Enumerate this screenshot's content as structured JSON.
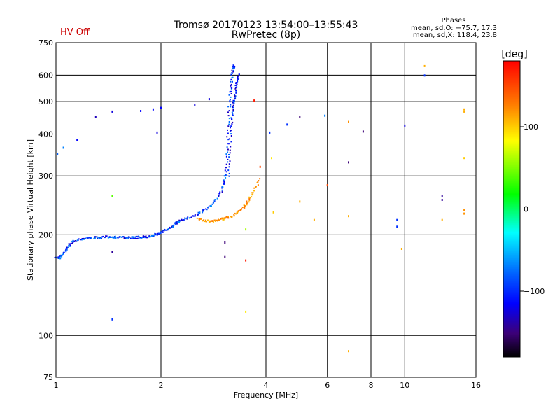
{
  "header": {
    "title": "Tromsø 20170123 13:54:00–13:55:43",
    "subtitle": "RwPretec (8p)",
    "status": "HV Off",
    "status_color": "#cc0000"
  },
  "stats": {
    "heading": "Phases",
    "line_o": "mean, sd,O: −75.7, 17.3",
    "line_x": "mean, sd,X: 118.4, 23.8"
  },
  "chart_data": {
    "type": "scatter",
    "xlabel": "Frequency [MHz]",
    "ylabel": "Stationary phase Virtual Height [km]",
    "xscale": "log",
    "yscale": "log",
    "xlim": [
      1,
      16
    ],
    "ylim": [
      75,
      750
    ],
    "xticks": [
      1,
      2,
      4,
      6,
      8,
      10,
      16
    ],
    "xtick_labels": [
      "1",
      "2",
      "4",
      "6",
      "8",
      "10",
      "16"
    ],
    "xgrid": [
      2,
      4,
      6,
      8,
      10
    ],
    "yticks": [
      75,
      100,
      200,
      300,
      400,
      500,
      600,
      750
    ],
    "ytick_labels": [
      "75",
      "100",
      "200",
      "300",
      "400",
      "500",
      "600",
      "750"
    ],
    "ygrid": [
      100,
      200,
      300,
      400,
      500,
      600
    ],
    "grid": true,
    "colorbar": {
      "label": "[deg]",
      "min": -180,
      "max": 180,
      "ticks": [
        100,
        0,
        -100
      ],
      "tick_labels": [
        "100",
        "0",
        "−100"
      ]
    },
    "o_trace": {
      "phase": -90,
      "points": [
        [
          1.0,
          172
        ],
        [
          1.02,
          170
        ],
        [
          1.04,
          173
        ],
        [
          1.06,
          178
        ],
        [
          1.08,
          183
        ],
        [
          1.1,
          188
        ],
        [
          1.12,
          191
        ],
        [
          1.15,
          193
        ],
        [
          1.2,
          195
        ],
        [
          1.25,
          196
        ],
        [
          1.3,
          196
        ],
        [
          1.35,
          196
        ],
        [
          1.4,
          197
        ],
        [
          1.45,
          197
        ],
        [
          1.5,
          197
        ],
        [
          1.55,
          196
        ],
        [
          1.6,
          196
        ],
        [
          1.65,
          196
        ],
        [
          1.7,
          196
        ],
        [
          1.75,
          197
        ],
        [
          1.8,
          197
        ],
        [
          1.85,
          198
        ],
        [
          1.9,
          199
        ],
        [
          1.95,
          201
        ],
        [
          2.0,
          203
        ],
        [
          2.05,
          206
        ],
        [
          2.1,
          209
        ],
        [
          2.15,
          212
        ],
        [
          2.2,
          216
        ],
        [
          2.25,
          219
        ],
        [
          2.3,
          222
        ],
        [
          2.4,
          225
        ],
        [
          2.5,
          228
        ],
        [
          2.6,
          233
        ],
        [
          2.7,
          239
        ],
        [
          2.8,
          247
        ],
        [
          2.9,
          258
        ],
        [
          3.0,
          272
        ],
        [
          3.05,
          290
        ],
        [
          3.08,
          320
        ],
        [
          3.1,
          360
        ],
        [
          3.12,
          420
        ],
        [
          3.14,
          480
        ],
        [
          3.16,
          520
        ],
        [
          3.18,
          560
        ],
        [
          3.2,
          600
        ],
        [
          3.22,
          630
        ],
        [
          3.25,
          640
        ]
      ]
    },
    "o_trace_b": {
      "phase": -100,
      "points": [
        [
          3.12,
          300
        ],
        [
          3.14,
          340
        ],
        [
          3.16,
          380
        ],
        [
          3.18,
          420
        ],
        [
          3.2,
          450
        ],
        [
          3.22,
          480
        ],
        [
          3.24,
          500
        ],
        [
          3.26,
          520
        ],
        [
          3.28,
          550
        ],
        [
          3.3,
          570
        ],
        [
          3.32,
          590
        ],
        [
          3.34,
          610
        ]
      ]
    },
    "x_trace": {
      "phase": 118,
      "points": [
        [
          2.55,
          224
        ],
        [
          2.65,
          221
        ],
        [
          2.75,
          219
        ],
        [
          2.85,
          220
        ],
        [
          2.95,
          222
        ],
        [
          3.05,
          224
        ],
        [
          3.15,
          226
        ],
        [
          3.25,
          229
        ],
        [
          3.35,
          235
        ],
        [
          3.45,
          242
        ],
        [
          3.55,
          252
        ],
        [
          3.65,
          264
        ],
        [
          3.75,
          278
        ],
        [
          3.85,
          295
        ]
      ]
    },
    "scatter": [
      {
        "x": 1.01,
        "y": 350,
        "c": -80
      },
      {
        "x": 1.05,
        "y": 365,
        "c": -70
      },
      {
        "x": 1.3,
        "y": 450,
        "c": -120
      },
      {
        "x": 1.45,
        "y": 468,
        "c": -110
      },
      {
        "x": 1.75,
        "y": 470,
        "c": -100
      },
      {
        "x": 1.9,
        "y": 475,
        "c": -100
      },
      {
        "x": 2.0,
        "y": 480,
        "c": -100
      },
      {
        "x": 1.95,
        "y": 405,
        "c": -110
      },
      {
        "x": 2.5,
        "y": 490,
        "c": -110
      },
      {
        "x": 2.75,
        "y": 510,
        "c": -110
      },
      {
        "x": 1.15,
        "y": 385,
        "c": -100
      },
      {
        "x": 1.45,
        "y": 262,
        "c": 40
      },
      {
        "x": 1.45,
        "y": 178,
        "c": -130
      },
      {
        "x": 1.45,
        "y": 112,
        "c": -90
      },
      {
        "x": 3.05,
        "y": 190,
        "c": -140
      },
      {
        "x": 3.05,
        "y": 172,
        "c": -140
      },
      {
        "x": 3.5,
        "y": 208,
        "c": 60
      },
      {
        "x": 3.5,
        "y": 168,
        "c": 170
      },
      {
        "x": 3.5,
        "y": 118,
        "c": 90
      },
      {
        "x": 3.7,
        "y": 505,
        "c": 170
      },
      {
        "x": 3.85,
        "y": 320,
        "c": 150
      },
      {
        "x": 4.1,
        "y": 405,
        "c": -90
      },
      {
        "x": 4.15,
        "y": 340,
        "c": 90
      },
      {
        "x": 4.2,
        "y": 234,
        "c": 100
      },
      {
        "x": 4.6,
        "y": 428,
        "c": -90
      },
      {
        "x": 5.0,
        "y": 450,
        "c": -140
      },
      {
        "x": 5.0,
        "y": 252,
        "c": 110
      },
      {
        "x": 5.5,
        "y": 222,
        "c": 110
      },
      {
        "x": 5.9,
        "y": 455,
        "c": -70
      },
      {
        "x": 6.0,
        "y": 282,
        "c": 150
      },
      {
        "x": 6.9,
        "y": 436,
        "c": 120
      },
      {
        "x": 6.9,
        "y": 330,
        "c": -140
      },
      {
        "x": 6.9,
        "y": 228,
        "c": 110
      },
      {
        "x": 6.9,
        "y": 90,
        "c": 110
      },
      {
        "x": 7.6,
        "y": 408,
        "c": -140
      },
      {
        "x": 9.5,
        "y": 222,
        "c": -90
      },
      {
        "x": 9.5,
        "y": 212,
        "c": -90
      },
      {
        "x": 9.8,
        "y": 182,
        "c": 110
      },
      {
        "x": 10.0,
        "y": 425,
        "c": -110
      },
      {
        "x": 11.4,
        "y": 640,
        "c": 110
      },
      {
        "x": 11.4,
        "y": 600,
        "c": -90
      },
      {
        "x": 12.8,
        "y": 262,
        "c": -130
      },
      {
        "x": 12.8,
        "y": 255,
        "c": -130
      },
      {
        "x": 12.8,
        "y": 222,
        "c": 110
      },
      {
        "x": 14.8,
        "y": 475,
        "c": 110
      },
      {
        "x": 14.8,
        "y": 468,
        "c": 110
      },
      {
        "x": 14.8,
        "y": 340,
        "c": 100
      },
      {
        "x": 14.8,
        "y": 238,
        "c": 120
      },
      {
        "x": 14.8,
        "y": 232,
        "c": 120
      }
    ]
  }
}
